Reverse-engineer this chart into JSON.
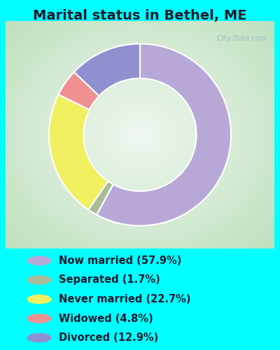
{
  "title": "Marital status in Bethel, ME",
  "slices": [
    {
      "label": "Now married (57.9%)",
      "value": 57.9,
      "color": "#b8a8d8"
    },
    {
      "label": "Separated (1.7%)",
      "value": 1.7,
      "color": "#a8bc98"
    },
    {
      "label": "Never married (22.7%)",
      "value": 22.7,
      "color": "#f0f060"
    },
    {
      "label": "Widowed (4.8%)",
      "value": 4.8,
      "color": "#f09090"
    },
    {
      "label": "Divorced (12.9%)",
      "value": 12.9,
      "color": "#9090d0"
    }
  ],
  "bg_color": "#00ffff",
  "title_color": "#1a1a2e",
  "title_fontsize": 14,
  "legend_fontsize": 10.5,
  "watermark": "  City-Data.com"
}
